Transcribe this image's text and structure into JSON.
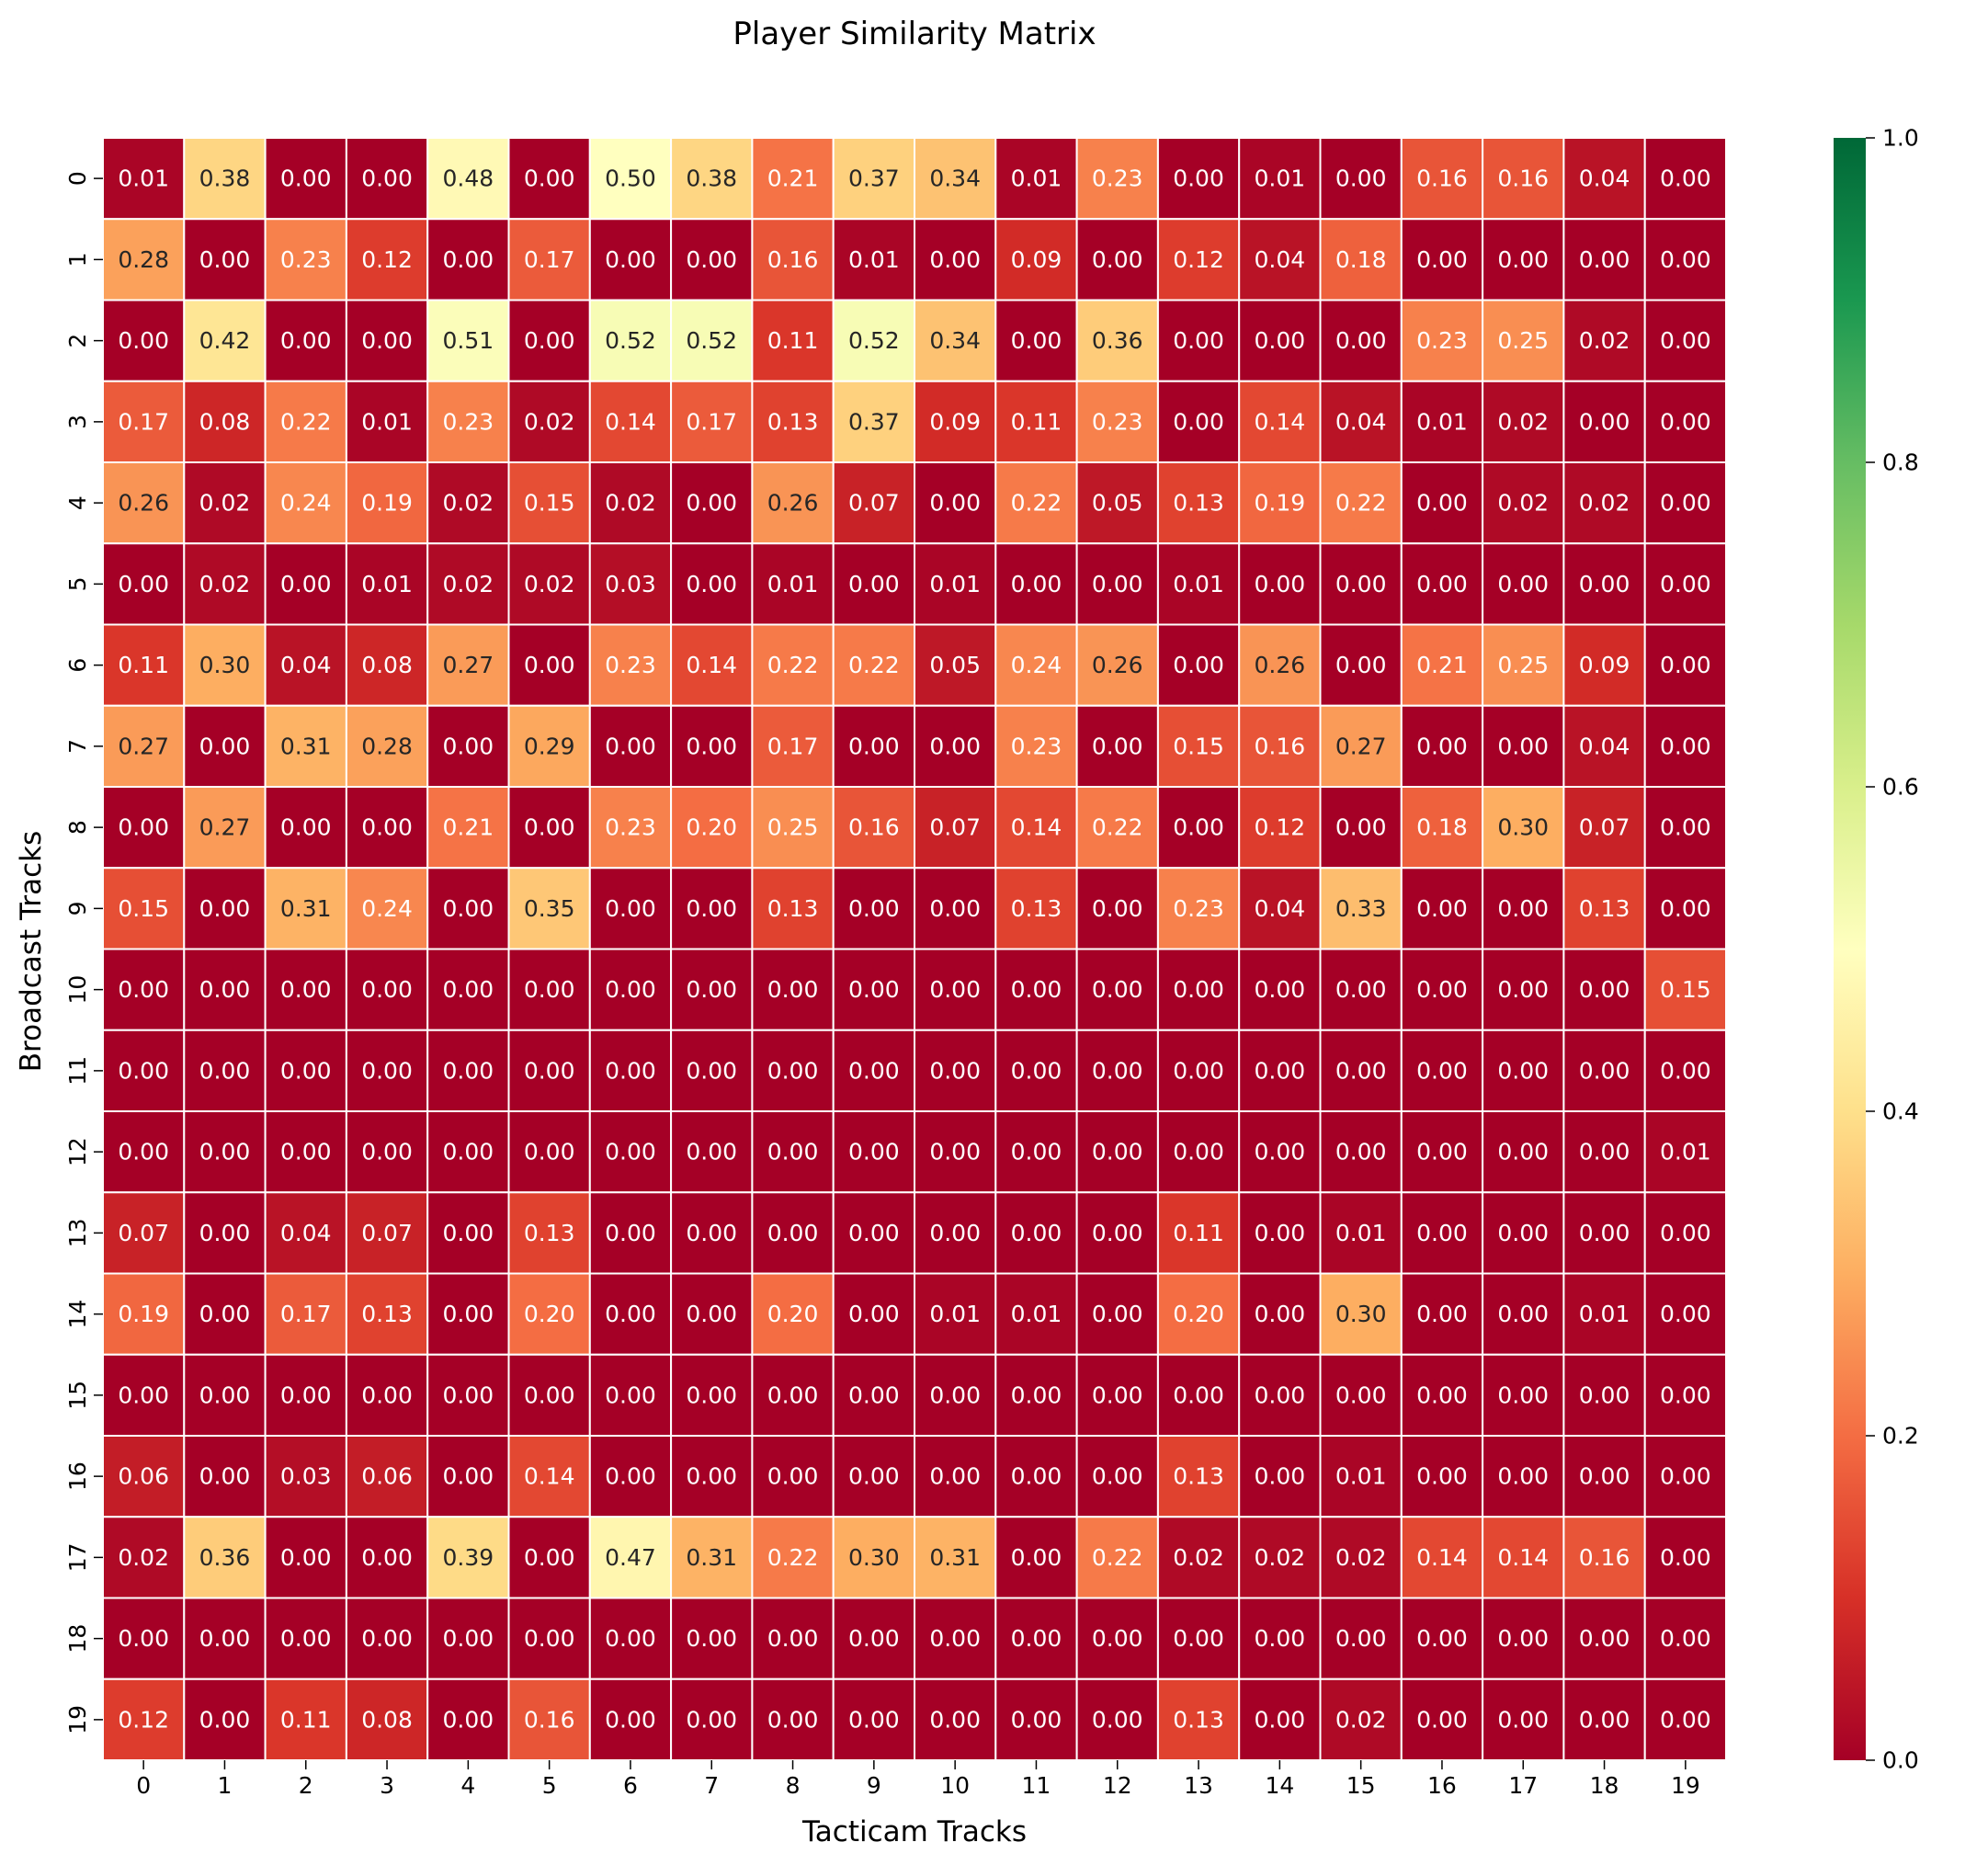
{
  "chart_data": {
    "type": "heatmap",
    "title": "Player Similarity Matrix",
    "xlabel": "Tacticam Tracks",
    "ylabel": "Broadcast Tracks",
    "x_categories": [
      "0",
      "1",
      "2",
      "3",
      "4",
      "5",
      "6",
      "7",
      "8",
      "9",
      "10",
      "11",
      "12",
      "13",
      "14",
      "15",
      "16",
      "17",
      "18",
      "19"
    ],
    "y_categories": [
      "0",
      "1",
      "2",
      "3",
      "4",
      "5",
      "6",
      "7",
      "8",
      "9",
      "10",
      "11",
      "12",
      "13",
      "14",
      "15",
      "16",
      "17",
      "18",
      "19"
    ],
    "values": [
      [
        0.01,
        0.38,
        0.0,
        0.0,
        0.48,
        0.0,
        0.5,
        0.38,
        0.21,
        0.37,
        0.34,
        0.01,
        0.23,
        0.0,
        0.01,
        0.0,
        0.16,
        0.16,
        0.04,
        0.0
      ],
      [
        0.28,
        0.0,
        0.23,
        0.12,
        0.0,
        0.17,
        0.0,
        0.0,
        0.16,
        0.01,
        0.0,
        0.09,
        0.0,
        0.12,
        0.04,
        0.18,
        0.0,
        0.0,
        0.0,
        0.0
      ],
      [
        0.0,
        0.42,
        0.0,
        0.0,
        0.51,
        0.0,
        0.52,
        0.52,
        0.11,
        0.52,
        0.34,
        0.0,
        0.36,
        0.0,
        0.0,
        0.0,
        0.23,
        0.25,
        0.02,
        0.0
      ],
      [
        0.17,
        0.08,
        0.22,
        0.01,
        0.23,
        0.02,
        0.14,
        0.17,
        0.13,
        0.37,
        0.09,
        0.11,
        0.23,
        0.0,
        0.14,
        0.04,
        0.01,
        0.02,
        0.0,
        0.0
      ],
      [
        0.26,
        0.02,
        0.24,
        0.19,
        0.02,
        0.15,
        0.02,
        0.0,
        0.26,
        0.07,
        0.0,
        0.22,
        0.05,
        0.13,
        0.19,
        0.22,
        0.0,
        0.02,
        0.02,
        0.0
      ],
      [
        0.0,
        0.02,
        0.0,
        0.01,
        0.02,
        0.02,
        0.03,
        0.0,
        0.01,
        0.0,
        0.01,
        0.0,
        0.0,
        0.01,
        0.0,
        0.0,
        0.0,
        0.0,
        0.0,
        0.0
      ],
      [
        0.11,
        0.3,
        0.04,
        0.08,
        0.27,
        0.0,
        0.23,
        0.14,
        0.22,
        0.22,
        0.05,
        0.24,
        0.26,
        0.0,
        0.26,
        0.0,
        0.21,
        0.25,
        0.09,
        0.0
      ],
      [
        0.27,
        0.0,
        0.31,
        0.28,
        0.0,
        0.29,
        0.0,
        0.0,
        0.17,
        0.0,
        0.0,
        0.23,
        0.0,
        0.15,
        0.16,
        0.27,
        0.0,
        0.0,
        0.04,
        0.0
      ],
      [
        0.0,
        0.27,
        0.0,
        0.0,
        0.21,
        0.0,
        0.23,
        0.2,
        0.25,
        0.16,
        0.07,
        0.14,
        0.22,
        0.0,
        0.12,
        0.0,
        0.18,
        0.3,
        0.07,
        0.0
      ],
      [
        0.15,
        0.0,
        0.31,
        0.24,
        0.0,
        0.35,
        0.0,
        0.0,
        0.13,
        0.0,
        0.0,
        0.13,
        0.0,
        0.23,
        0.04,
        0.33,
        0.0,
        0.0,
        0.13,
        0.0
      ],
      [
        0.0,
        0.0,
        0.0,
        0.0,
        0.0,
        0.0,
        0.0,
        0.0,
        0.0,
        0.0,
        0.0,
        0.0,
        0.0,
        0.0,
        0.0,
        0.0,
        0.0,
        0.0,
        0.0,
        0.15
      ],
      [
        0.0,
        0.0,
        0.0,
        0.0,
        0.0,
        0.0,
        0.0,
        0.0,
        0.0,
        0.0,
        0.0,
        0.0,
        0.0,
        0.0,
        0.0,
        0.0,
        0.0,
        0.0,
        0.0,
        0.0
      ],
      [
        0.0,
        0.0,
        0.0,
        0.0,
        0.0,
        0.0,
        0.0,
        0.0,
        0.0,
        0.0,
        0.0,
        0.0,
        0.0,
        0.0,
        0.0,
        0.0,
        0.0,
        0.0,
        0.0,
        0.01
      ],
      [
        0.07,
        0.0,
        0.04,
        0.07,
        0.0,
        0.13,
        0.0,
        0.0,
        0.0,
        0.0,
        0.0,
        0.0,
        0.0,
        0.11,
        0.0,
        0.01,
        0.0,
        0.0,
        0.0,
        0.0
      ],
      [
        0.19,
        0.0,
        0.17,
        0.13,
        0.0,
        0.2,
        0.0,
        0.0,
        0.2,
        0.0,
        0.01,
        0.01,
        0.0,
        0.2,
        0.0,
        0.3,
        0.0,
        0.0,
        0.01,
        0.0
      ],
      [
        0.0,
        0.0,
        0.0,
        0.0,
        0.0,
        0.0,
        0.0,
        0.0,
        0.0,
        0.0,
        0.0,
        0.0,
        0.0,
        0.0,
        0.0,
        0.0,
        0.0,
        0.0,
        0.0,
        0.0
      ],
      [
        0.06,
        0.0,
        0.03,
        0.06,
        0.0,
        0.14,
        0.0,
        0.0,
        0.0,
        0.0,
        0.0,
        0.0,
        0.0,
        0.13,
        0.0,
        0.01,
        0.0,
        0.0,
        0.0,
        0.0
      ],
      [
        0.02,
        0.36,
        0.0,
        0.0,
        0.39,
        0.0,
        0.47,
        0.31,
        0.22,
        0.3,
        0.31,
        0.0,
        0.22,
        0.02,
        0.02,
        0.02,
        0.14,
        0.14,
        0.16,
        0.0
      ],
      [
        0.0,
        0.0,
        0.0,
        0.0,
        0.0,
        0.0,
        0.0,
        0.0,
        0.0,
        0.0,
        0.0,
        0.0,
        0.0,
        0.0,
        0.0,
        0.0,
        0.0,
        0.0,
        0.0,
        0.0
      ],
      [
        0.12,
        0.0,
        0.11,
        0.08,
        0.0,
        0.16,
        0.0,
        0.0,
        0.0,
        0.0,
        0.0,
        0.0,
        0.0,
        0.13,
        0.0,
        0.02,
        0.0,
        0.0,
        0.0,
        0.0
      ]
    ],
    "value_range": [
      0,
      1
    ],
    "colormap": "RdYlGn",
    "colorbar_ticks": [
      "0.0",
      "0.2",
      "0.4",
      "0.6",
      "0.8",
      "1.0"
    ],
    "grid_line_color": "#ffffff",
    "dark_text_color": "#262626",
    "light_text_color": "#ffffff"
  }
}
